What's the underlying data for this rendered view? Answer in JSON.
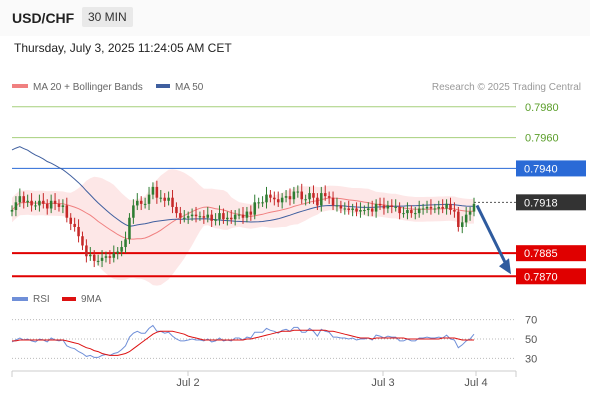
{
  "header": {
    "pair": "USD/CHF",
    "timeframe": "30 MIN"
  },
  "datetime": "Thursday, July 3, 2025 11:24:05 AM CET",
  "colors": {
    "up": "#2e7d32",
    "down": "#c62828",
    "ma20": "#f08080",
    "band_fill": "#fde3e3",
    "ma50": "#3f5f9f",
    "resistance_green": "#a6cf7c",
    "resistance_blue": "#2a6ad6",
    "support_red": "#e00000",
    "current_price": "#333333",
    "rsi": "#6f8fd8",
    "rsi_ma": "#dd1111",
    "arrow": "#2f5b9e"
  },
  "chart_data": [
    {
      "type": "candlestick",
      "legend": [
        "MA 20 + Bollinger Bands",
        "MA 50"
      ],
      "credit": "Research © 2025 Trading Central",
      "x_tick_labels": [
        "Jul 2",
        "Jul 3",
        "Jul 4"
      ],
      "ylim": [
        0.7865,
        0.7987
      ],
      "levels": [
        {
          "value": 0.798,
          "label": "0.7980",
          "kind": "resistance",
          "color": "#a6cf7c"
        },
        {
          "value": 0.796,
          "label": "0.7960",
          "kind": "resistance",
          "color": "#a6cf7c"
        },
        {
          "value": 0.794,
          "label": "0.7940",
          "kind": "pivot",
          "color": "#2a6ad6"
        },
        {
          "value": 0.7918,
          "label": "0.7918",
          "kind": "current",
          "color": "#333333"
        },
        {
          "value": 0.7885,
          "label": "0.7885",
          "kind": "support",
          "color": "#e00000"
        },
        {
          "value": 0.787,
          "label": "0.7870",
          "kind": "support",
          "color": "#e00000"
        }
      ],
      "forecast_arrow": {
        "from": 0.7916,
        "to": 0.787
      },
      "close": [
        0.7913,
        0.7918,
        0.7922,
        0.7918,
        0.7919,
        0.7916,
        0.7916,
        0.7919,
        0.7917,
        0.7914,
        0.7919,
        0.7917,
        0.7915,
        0.7916,
        0.7908,
        0.7904,
        0.7902,
        0.7896,
        0.789,
        0.7883,
        0.7884,
        0.788,
        0.788,
        0.7882,
        0.7883,
        0.7882,
        0.7885,
        0.7886,
        0.7889,
        0.7894,
        0.7908,
        0.7916,
        0.7919,
        0.7917,
        0.7917,
        0.7923,
        0.7928,
        0.7921,
        0.7921,
        0.7919,
        0.7921,
        0.7915,
        0.7911,
        0.7908,
        0.7908,
        0.7909,
        0.791,
        0.7909,
        0.7909,
        0.7908,
        0.791,
        0.7906,
        0.7907,
        0.7911,
        0.7907,
        0.7908,
        0.7907,
        0.791,
        0.791,
        0.7908,
        0.7912,
        0.791,
        0.7918,
        0.7918,
        0.7918,
        0.7923,
        0.7921,
        0.792,
        0.7918,
        0.7921,
        0.7922,
        0.792,
        0.7925,
        0.7925,
        0.792,
        0.792,
        0.7924,
        0.7921,
        0.7916,
        0.7924,
        0.7922,
        0.7921,
        0.7916,
        0.7916,
        0.7914,
        0.7914,
        0.7913,
        0.7914,
        0.7912,
        0.7913,
        0.7913,
        0.7914,
        0.7912,
        0.7917,
        0.7916,
        0.7914,
        0.7916,
        0.7915,
        0.7915,
        0.7911,
        0.7911,
        0.7913,
        0.7911,
        0.7911,
        0.7914,
        0.7914,
        0.7915,
        0.7914,
        0.7914,
        0.7915,
        0.7914,
        0.7917,
        0.7913,
        0.7912,
        0.7902,
        0.7905,
        0.791,
        0.7912,
        0.7917
      ],
      "open": [
        0.7912,
        0.7913,
        0.7918,
        0.7922,
        0.7918,
        0.7919,
        0.7916,
        0.7916,
        0.7919,
        0.7917,
        0.7914,
        0.7919,
        0.7917,
        0.7915,
        0.7916,
        0.7908,
        0.7904,
        0.7902,
        0.7896,
        0.789,
        0.7883,
        0.7884,
        0.788,
        0.788,
        0.7882,
        0.7883,
        0.7882,
        0.7885,
        0.7886,
        0.7889,
        0.7894,
        0.7908,
        0.7916,
        0.7919,
        0.7917,
        0.7917,
        0.7923,
        0.7928,
        0.7921,
        0.7921,
        0.7919,
        0.7921,
        0.7915,
        0.7911,
        0.7908,
        0.7908,
        0.7909,
        0.791,
        0.7909,
        0.7909,
        0.7908,
        0.791,
        0.7906,
        0.7907,
        0.7911,
        0.7907,
        0.7908,
        0.7907,
        0.791,
        0.791,
        0.7908,
        0.7912,
        0.791,
        0.7918,
        0.7918,
        0.7918,
        0.7923,
        0.7921,
        0.792,
        0.7918,
        0.7921,
        0.7922,
        0.792,
        0.7925,
        0.7925,
        0.792,
        0.792,
        0.7924,
        0.7921,
        0.7916,
        0.7924,
        0.7922,
        0.7921,
        0.7916,
        0.7916,
        0.7914,
        0.7914,
        0.7913,
        0.7914,
        0.7912,
        0.7913,
        0.7913,
        0.7914,
        0.7912,
        0.7917,
        0.7916,
        0.7914,
        0.7916,
        0.7915,
        0.7915,
        0.7911,
        0.7911,
        0.7913,
        0.7911,
        0.7911,
        0.7914,
        0.7914,
        0.7915,
        0.7914,
        0.7914,
        0.7915,
        0.7914,
        0.7917,
        0.7913,
        0.7912,
        0.7902,
        0.7905,
        0.791,
        0.7912
      ]
    },
    {
      "type": "line",
      "legend": [
        "RSI",
        "9MA"
      ],
      "ylim": [
        20,
        80
      ],
      "y_tick_labels": [
        "70",
        "50",
        "30"
      ],
      "series": [
        {
          "name": "RSI",
          "values": [
            47,
            49,
            51,
            49,
            50,
            48,
            47,
            50,
            49,
            47,
            51,
            49,
            48,
            49,
            43,
            41,
            40,
            37,
            35,
            32,
            33,
            31,
            31,
            33,
            34,
            33,
            35,
            36,
            39,
            43,
            52,
            56,
            58,
            56,
            56,
            61,
            64,
            58,
            58,
            56,
            57,
            53,
            50,
            48,
            48,
            49,
            50,
            49,
            49,
            48,
            50,
            47,
            48,
            51,
            48,
            49,
            48,
            51,
            51,
            49,
            52,
            51,
            57,
            57,
            57,
            61,
            59,
            58,
            56,
            59,
            60,
            58,
            62,
            62,
            57,
            57,
            61,
            58,
            53,
            60,
            58,
            57,
            52,
            52,
            51,
            51,
            50,
            51,
            49,
            50,
            50,
            51,
            49,
            54,
            53,
            51,
            53,
            52,
            52,
            48,
            48,
            50,
            48,
            48,
            51,
            51,
            52,
            51,
            51,
            52,
            51,
            54,
            50,
            49,
            41,
            44,
            48,
            50,
            55
          ]
        },
        {
          "name": "9MA",
          "values": [
            48,
            48,
            49,
            49,
            49,
            49,
            49,
            49,
            49,
            49,
            49,
            49,
            49,
            49,
            48,
            47,
            46,
            45,
            43,
            41,
            40,
            38,
            37,
            35,
            34,
            33,
            33,
            33,
            34,
            35,
            37,
            40,
            43,
            46,
            49,
            52,
            55,
            57,
            58,
            58,
            58,
            58,
            57,
            56,
            55,
            53,
            52,
            51,
            50,
            49,
            49,
            49,
            49,
            49,
            49,
            49,
            49,
            49,
            49,
            49,
            50,
            50,
            51,
            52,
            53,
            54,
            55,
            56,
            57,
            58,
            58,
            58,
            59,
            59,
            59,
            59,
            59,
            59,
            59,
            59,
            59,
            58,
            58,
            57,
            56,
            55,
            54,
            53,
            52,
            51,
            51,
            51,
            50,
            51,
            51,
            51,
            51,
            51,
            51,
            51,
            51,
            50,
            50,
            50,
            50,
            50,
            50,
            50,
            50,
            50,
            51,
            51,
            51,
            51,
            50,
            49,
            49,
            49,
            49
          ]
        }
      ]
    }
  ]
}
